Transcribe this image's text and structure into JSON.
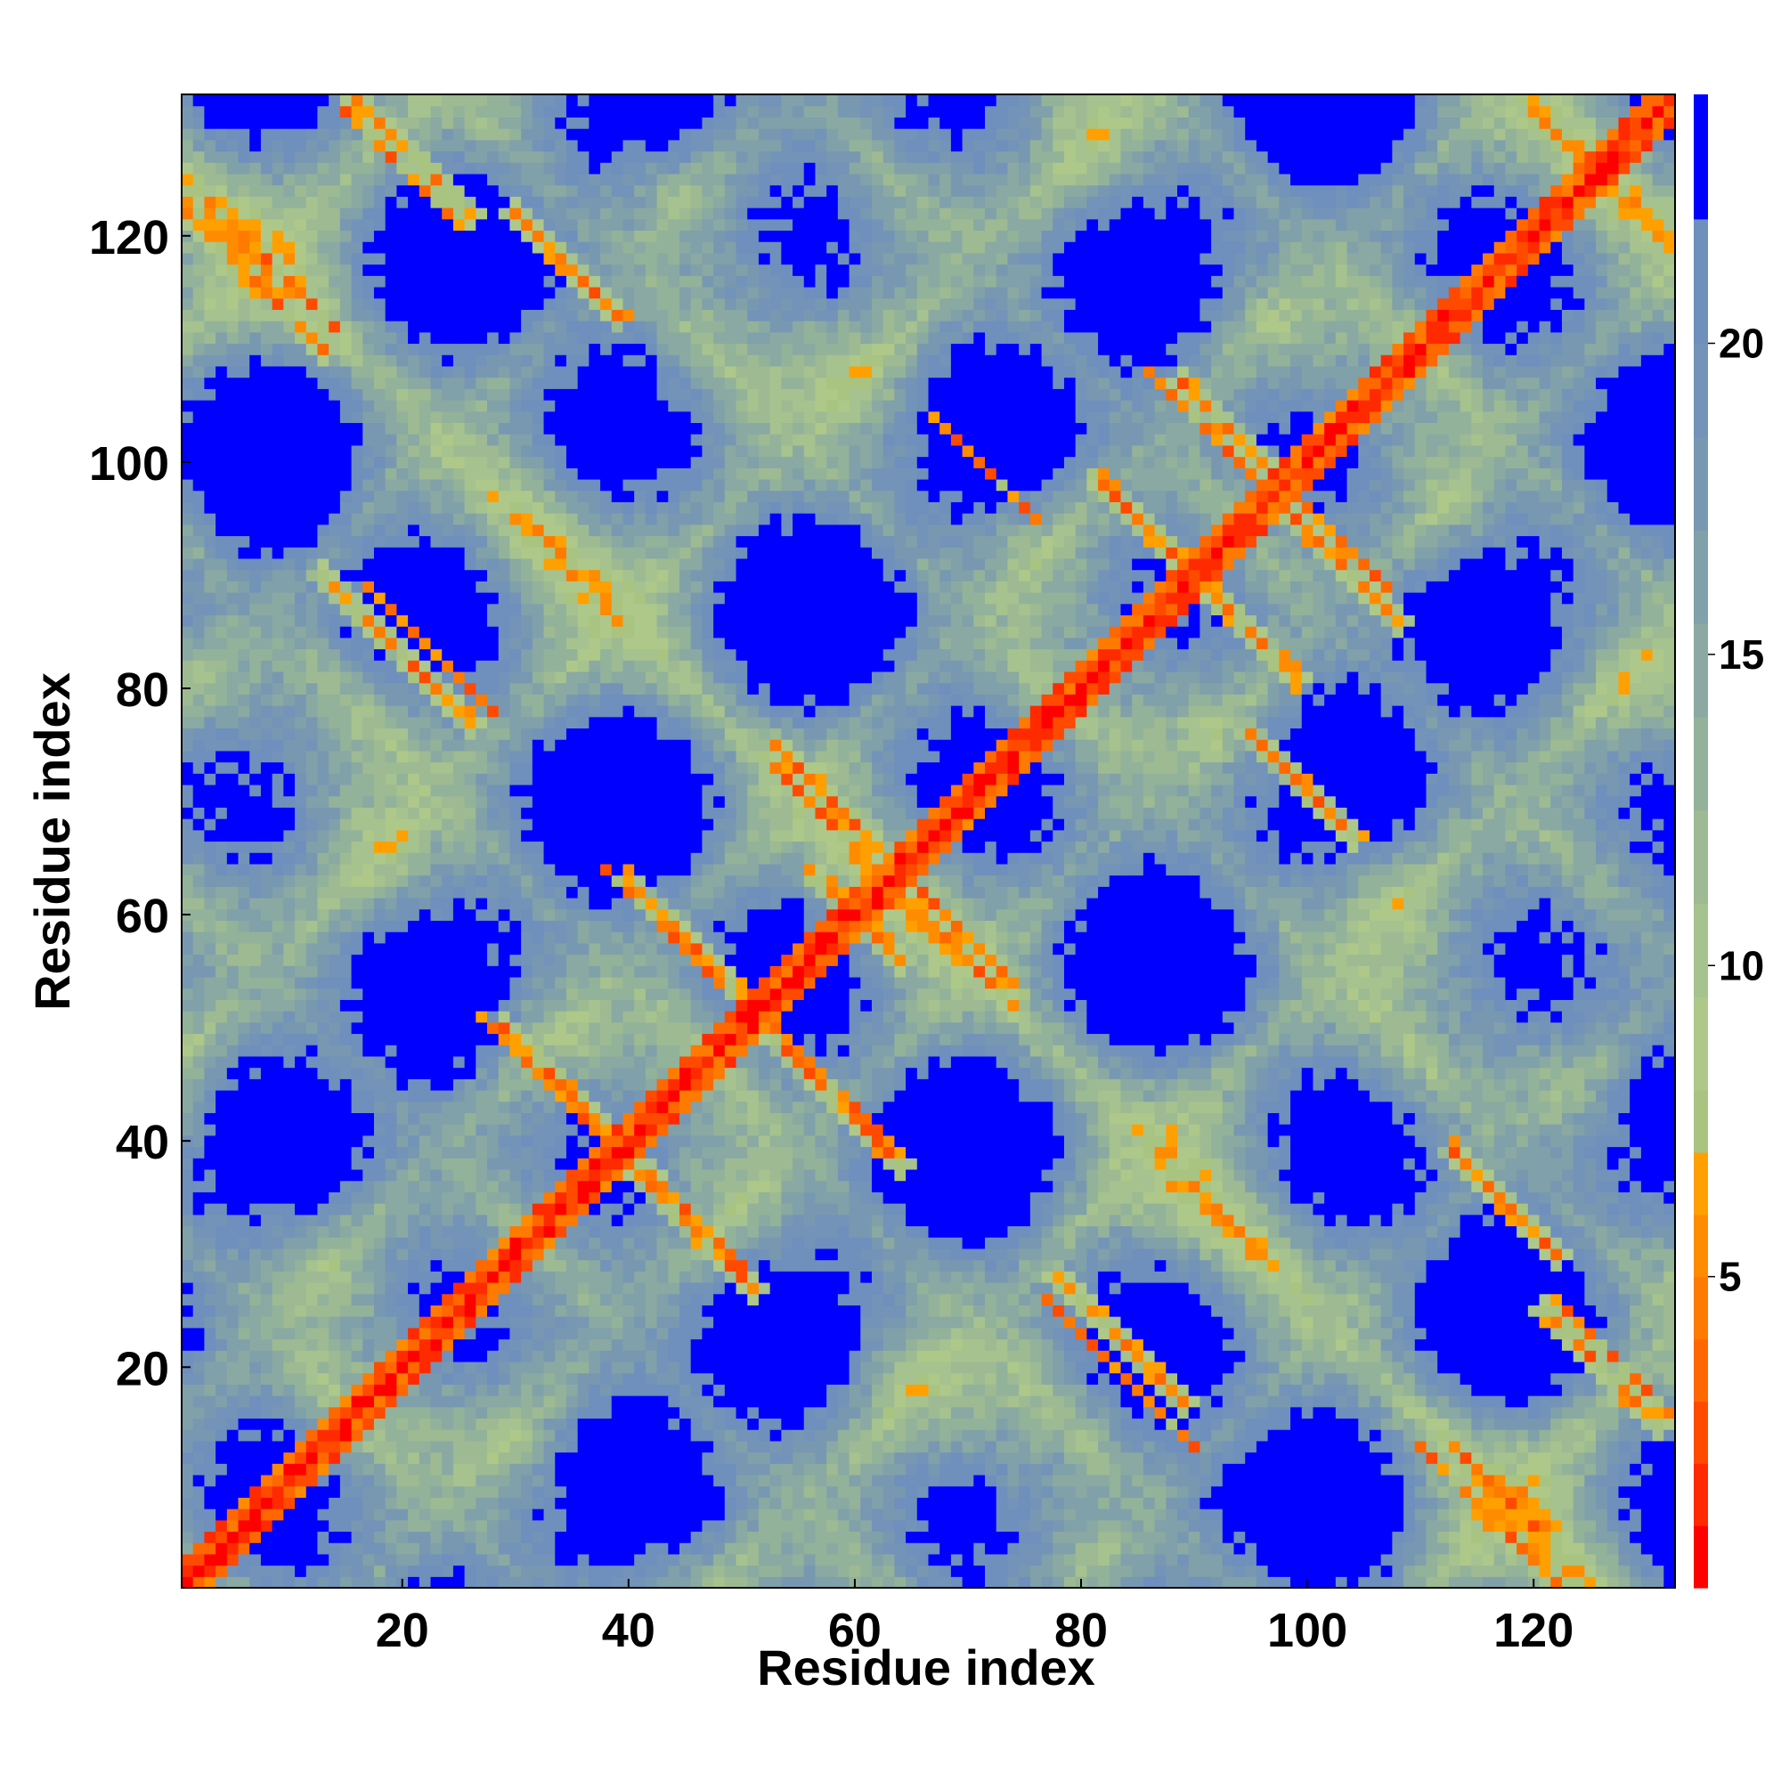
{
  "chart_data": {
    "type": "heatmap",
    "description_matrix": "Residue-residue distance map of a 132-residue chain (values are distances; small = red, large = blue)",
    "n_residues": 132,
    "xlabel": "Residue index",
    "ylabel": "Residue index",
    "xlim": [
      0.5,
      132.5
    ],
    "ylim": [
      0.5,
      132.5
    ],
    "x_ticks": [
      20,
      40,
      60,
      80,
      100,
      120
    ],
    "y_ticks": [
      20,
      40,
      60,
      80,
      100,
      120
    ],
    "colorbar": {
      "range": [
        0,
        24
      ],
      "ticks": [
        5,
        10,
        15,
        20
      ],
      "stops": [
        {
          "max": 1.0,
          "color": "#ff0000"
        },
        {
          "max": 2.0,
          "color": "#ff2a00"
        },
        {
          "max": 3.0,
          "color": "#ff4a00"
        },
        {
          "max": 4.0,
          "color": "#ff6800"
        },
        {
          "max": 5.0,
          "color": "#ff7a00"
        },
        {
          "max": 6.0,
          "color": "#ff8c00"
        },
        {
          "max": 7.0,
          "color": "#ffa000"
        },
        {
          "max": 8.0,
          "color": "#a9c480"
        },
        {
          "max": 9.5,
          "color": "#aec88a"
        },
        {
          "max": 11.0,
          "color": "#a6c28e"
        },
        {
          "max": 12.5,
          "color": "#9dba93"
        },
        {
          "max": 14.0,
          "color": "#93b29a"
        },
        {
          "max": 15.5,
          "color": "#8aa9a2"
        },
        {
          "max": 17.0,
          "color": "#80a0aa"
        },
        {
          "max": 18.5,
          "color": "#7898b2"
        },
        {
          "max": 20.0,
          "color": "#7393b8"
        },
        {
          "max": 22.0,
          "color": "#6f8fbc"
        },
        {
          "max": 24.0,
          "color": "#0000ff"
        }
      ]
    },
    "contact_segments": [
      {
        "type": "anti",
        "x_start": 1,
        "y_start": 122,
        "length": 13
      },
      {
        "type": "anti",
        "x_start": 15,
        "y_start": 133,
        "length": 12
      },
      {
        "type": "anti",
        "x_start": 30,
        "y_start": 122,
        "length": 10
      },
      {
        "type": "anti",
        "x_start": 13,
        "y_start": 90,
        "length": 14
      },
      {
        "type": "anti",
        "x_start": 29,
        "y_start": 50,
        "length": 14
      },
      {
        "type": "anti",
        "x_start": 40,
        "y_start": 38,
        "length": 12
      },
      {
        "type": "anti",
        "x_start": 40,
        "y_start": 63,
        "length": 12
      },
      {
        "type": "anti",
        "x_start": 52,
        "y_start": 50,
        "length": 13
      },
      {
        "type": "anti",
        "x_start": 53,
        "y_start": 75,
        "length": 11
      },
      {
        "type": "anti",
        "x_start": 64,
        "y_start": 62,
        "length": 11
      },
      {
        "type": "anti",
        "x_start": 78,
        "y_start": 28,
        "length": 12
      },
      {
        "type": "anti",
        "x_start": 89,
        "y_start": 107,
        "length": 9
      },
      {
        "type": "anti",
        "x_start": 82,
        "y_start": 98,
        "length": 8
      },
      {
        "type": "anti",
        "x_start": 98,
        "y_start": 96,
        "length": 11
      },
      {
        "type": "anti",
        "x_start": 91,
        "y_start": 89,
        "length": 9
      },
      {
        "type": "anti",
        "x_start": 113,
        "y_start": 39,
        "length": 10
      },
      {
        "type": "anti",
        "x_start": 112,
        "y_start": 14,
        "length": 12
      },
      {
        "type": "anti",
        "x_start": 121,
        "y_start": 25,
        "length": 11
      },
      {
        "type": "anti",
        "x_start": 57,
        "y_start": 63,
        "length": 8
      },
      {
        "type": "anti",
        "x_start": 95,
        "y_start": 76,
        "length": 10
      }
    ]
  }
}
